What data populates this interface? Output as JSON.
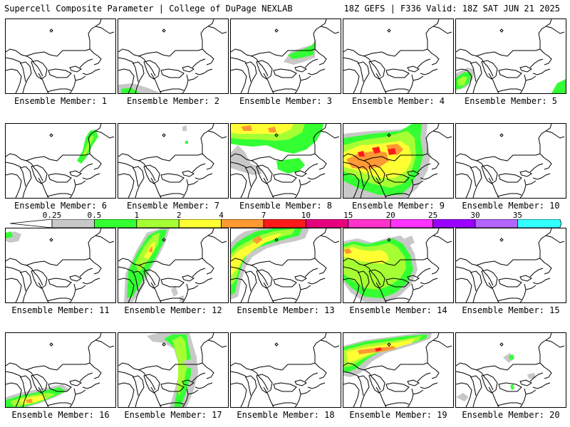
{
  "header": {
    "title_left": "Supercell Composite Parameter | College of DuPage NEXLAB",
    "title_right": "18Z GEFS | F336 Valid: 18Z SAT JUN 21 2025"
  },
  "colors": {
    "c025": "#c8c8c8",
    "c05": "#33ff33",
    "c1": "#a6ff33",
    "c2": "#ffff33",
    "c4": "#ff9933",
    "c7": "#ff1a1a",
    "c10": "#e6007e",
    "c15": "#ff33cc",
    "c20": "#ff33ff",
    "c25": "#9900ff",
    "c30": "#b366ff",
    "c35": "#33ffff"
  },
  "colorbar": {
    "labels": [
      "0.25",
      "0.5",
      "1",
      "2",
      "4",
      "7",
      "10",
      "15",
      "20",
      "25",
      "30",
      "35"
    ]
  },
  "members": [
    {
      "label": "Ensemble Member: 1"
    },
    {
      "label": "Ensemble Member: 2"
    },
    {
      "label": "Ensemble Member: 3"
    },
    {
      "label": "Ensemble Member: 4"
    },
    {
      "label": "Ensemble Member: 5"
    },
    {
      "label": "Ensemble Member: 6"
    },
    {
      "label": "Ensemble Member: 7"
    },
    {
      "label": "Ensemble Member: 8"
    },
    {
      "label": "Ensemble Member: 9"
    },
    {
      "label": "Ensemble Member: 10"
    },
    {
      "label": "Ensemble Member: 11"
    },
    {
      "label": "Ensemble Member: 12"
    },
    {
      "label": "Ensemble Member: 13"
    },
    {
      "label": "Ensemble Member: 14"
    },
    {
      "label": "Ensemble Member: 15"
    },
    {
      "label": "Ensemble Member: 16"
    },
    {
      "label": "Ensemble Member: 17"
    },
    {
      "label": "Ensemble Member: 18"
    },
    {
      "label": "Ensemble Member: 19"
    },
    {
      "label": "Ensemble Member: 20"
    }
  ]
}
